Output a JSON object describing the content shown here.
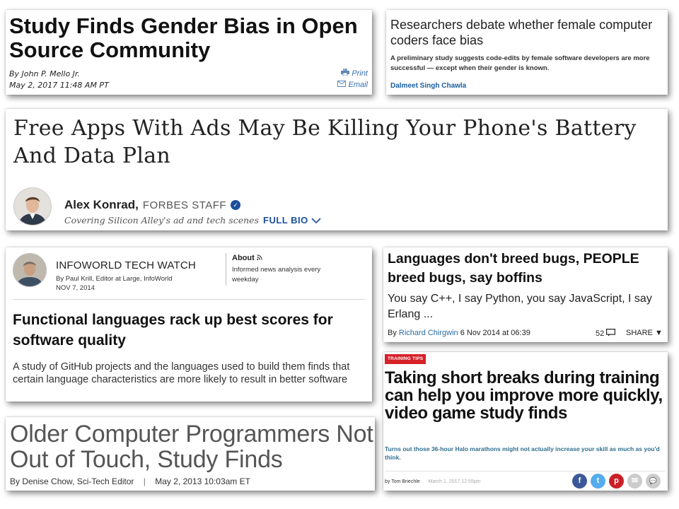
{
  "card1": {
    "title": "Study Finds Gender Bias in Open Source Community",
    "byline": "By John P. Mello Jr.",
    "date": "May 2, 2017 11:48 AM PT",
    "print_label": "Print",
    "email_label": "Email",
    "icons": {
      "print": "printer-icon",
      "email": "envelope-icon"
    }
  },
  "card2": {
    "title": "Researchers debate whether female computer coders face bias",
    "summary": "A preliminary study suggests code-edits by female software developers are more successful — except when their gender is known.",
    "author": "Dalmeet Singh Chawla",
    "author_color": "#1a5fa0"
  },
  "card3": {
    "title": "Free Apps With Ads May Be Killing Your Phone's Battery And Data Plan",
    "author_name": "Alex Konrad,",
    "author_role": "FORBES STAFF",
    "tagline": "Covering Silicon Alley's ad and tech scenes",
    "bio_label": "FULL BIO",
    "icons": {
      "verified": "verified-check-icon",
      "expand": "chevron-down-icon"
    },
    "accent_color": "#1b4f9c"
  },
  "card4": {
    "blog_name": "INFOWORLD TECH WATCH",
    "byline": "By Paul Krill, Editor at Large, InfoWorld",
    "date": "NOV 7, 2014",
    "about_label": "About",
    "about_text": "Informed news analysis every weekday",
    "title": "Functional languages rack up best scores for software quality",
    "summary": "A study of GitHub projects and the languages used to build them finds that certain language characteristics are more likely to result in better software",
    "icons": {
      "rss": "rss-icon"
    }
  },
  "card5": {
    "title": "Languages don't breed bugs, PEOPLE breed bugs, say boffins",
    "summary": "You say C++, I say Python, you say JavaScript, I say Erlang ...",
    "byline_prefix": "By",
    "author": "Richard Chirgwin",
    "date": "6 Nov 2014 at 06:39",
    "comment_count": "52",
    "share_label": "SHARE ▼",
    "icons": {
      "comments": "comment-bubble-icon"
    }
  },
  "card6": {
    "tag": "TRAINING TIPS",
    "tag_color": "#d62027",
    "title": "Taking short breaks during training can help you improve more quickly, video game study finds",
    "summary": "Turns out those 36-hour Halo marathons might not actually increase your skill as much as you'd think.",
    "byline": "by Tom Briechle",
    "date": "March 1, 2017 12:55pm",
    "social": [
      {
        "icon": "facebook-icon",
        "glyph": "f",
        "color": "#3b5998"
      },
      {
        "icon": "twitter-icon",
        "glyph": "t",
        "color": "#55acee"
      },
      {
        "icon": "pinterest-icon",
        "glyph": "p",
        "color": "#cb2027"
      },
      {
        "icon": "email-icon",
        "glyph": "✉",
        "color": "#cccccc"
      },
      {
        "icon": "comment-icon",
        "glyph": "💬",
        "color": "#cccccc"
      }
    ]
  },
  "card7": {
    "title": "Older Computer Programmers Not Out of Touch, Study Finds",
    "byline": "By Denise Chow, Sci-Tech Editor",
    "separator": "|",
    "date": "May 2, 2013 10:03am ET"
  }
}
